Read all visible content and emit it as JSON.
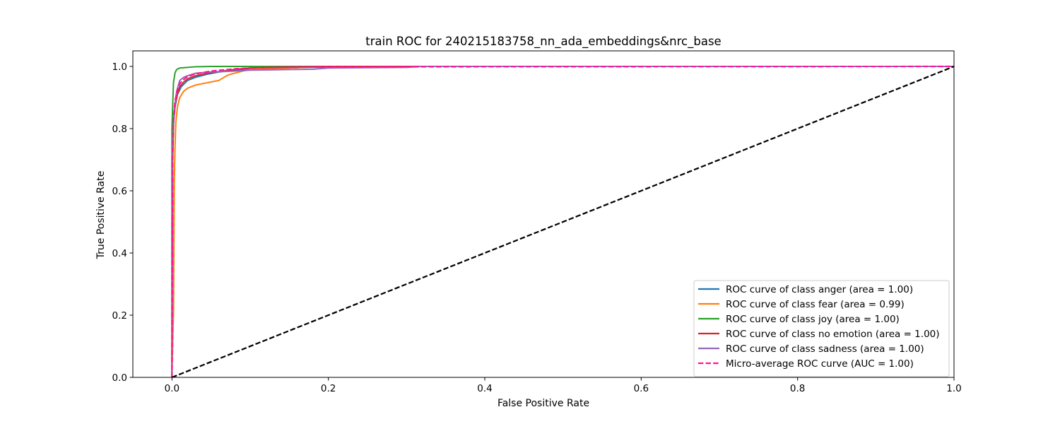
{
  "chart_data": {
    "type": "line",
    "title": "train ROC for 240215183758_nn_ada_embeddings&nrc_base",
    "xlabel": "False Positive Rate",
    "ylabel": "True Positive Rate",
    "xlim": [
      -0.05,
      1.0
    ],
    "ylim": [
      0.0,
      1.05
    ],
    "xticks": [
      0.0,
      0.2,
      0.4,
      0.6,
      0.8,
      1.0
    ],
    "xtick_labels": [
      "0.0",
      "0.2",
      "0.4",
      "0.6",
      "0.8",
      "1.0"
    ],
    "yticks": [
      0.0,
      0.2,
      0.4,
      0.6,
      0.8,
      1.0
    ],
    "ytick_labels": [
      "0.0",
      "0.2",
      "0.4",
      "0.6",
      "0.8",
      "1.0"
    ],
    "grid": false,
    "legend_position": "lower-right",
    "series": [
      {
        "name": "ROC curve of class anger (area = 1.00)",
        "color": "#1f77b4",
        "style": "solid",
        "x": [
          0.0,
          0.0,
          0.002,
          0.004,
          0.007,
          0.012,
          0.02,
          0.03,
          0.045,
          0.06,
          0.08,
          0.1,
          0.15,
          0.2,
          0.3,
          1.0
        ],
        "y": [
          0.0,
          0.7,
          0.82,
          0.87,
          0.91,
          0.935,
          0.955,
          0.965,
          0.975,
          0.982,
          0.988,
          0.993,
          0.996,
          0.998,
          1.0,
          1.0
        ]
      },
      {
        "name": "ROC curve of class fear (area = 0.99)",
        "color": "#ff7f0e",
        "style": "solid",
        "x": [
          0.0,
          0.002,
          0.003,
          0.004,
          0.005,
          0.007,
          0.01,
          0.015,
          0.02,
          0.03,
          0.04,
          0.05,
          0.06,
          0.07,
          0.075,
          0.08,
          0.09,
          0.1,
          0.15,
          0.2,
          1.0
        ],
        "y": [
          0.0,
          0.22,
          0.63,
          0.75,
          0.82,
          0.87,
          0.9,
          0.92,
          0.93,
          0.94,
          0.945,
          0.95,
          0.955,
          0.97,
          0.975,
          0.978,
          0.985,
          0.99,
          0.995,
          1.0,
          1.0
        ]
      },
      {
        "name": "ROC curve of class joy (area = 1.00)",
        "color": "#2ca02c",
        "style": "solid",
        "x": [
          0.0,
          0.0,
          0.001,
          0.002,
          0.004,
          0.006,
          0.01,
          0.02,
          0.03,
          0.05,
          0.1,
          0.2,
          1.0
        ],
        "y": [
          0.0,
          0.8,
          0.88,
          0.95,
          0.98,
          0.99,
          0.995,
          0.997,
          0.999,
          1.0,
          1.0,
          1.0,
          1.0
        ]
      },
      {
        "name": "ROC curve of class no emotion (area = 1.00)",
        "color": "#d62728",
        "style": "solid",
        "x": [
          0.0,
          0.001,
          0.002,
          0.004,
          0.007,
          0.01,
          0.015,
          0.02,
          0.03,
          0.05,
          0.08,
          0.1,
          0.15,
          0.2,
          1.0
        ],
        "y": [
          0.0,
          0.7,
          0.82,
          0.88,
          0.91,
          0.935,
          0.95,
          0.96,
          0.97,
          0.98,
          0.99,
          0.995,
          0.998,
          1.0,
          1.0
        ]
      },
      {
        "name": "ROC curve of class sadness (area = 1.00)",
        "color": "#9467bd",
        "style": "solid",
        "x": [
          0.0,
          0.0,
          0.001,
          0.003,
          0.006,
          0.01,
          0.015,
          0.02,
          0.03,
          0.05,
          0.08,
          0.1,
          0.15,
          0.18,
          0.2,
          0.3,
          0.32,
          1.0
        ],
        "y": [
          0.0,
          0.5,
          0.75,
          0.86,
          0.92,
          0.955,
          0.965,
          0.97,
          0.978,
          0.982,
          0.985,
          0.988,
          0.99,
          0.991,
          0.995,
          0.997,
          1.0,
          1.0
        ]
      },
      {
        "name": "Micro-average ROC curve (AUC = 1.00)",
        "color": "#ff1493",
        "style": "dashed",
        "x": [
          0.0,
          0.001,
          0.002,
          0.004,
          0.007,
          0.01,
          0.015,
          0.02,
          0.03,
          0.05,
          0.08,
          0.1,
          0.2,
          1.0
        ],
        "y": [
          0.0,
          0.72,
          0.83,
          0.89,
          0.925,
          0.945,
          0.958,
          0.967,
          0.976,
          0.985,
          0.992,
          0.995,
          0.999,
          1.0
        ]
      },
      {
        "name": "",
        "color": "#000000",
        "style": "dashed",
        "x": [
          0.0,
          1.0
        ],
        "y": [
          0.0,
          1.0
        ]
      }
    ]
  }
}
